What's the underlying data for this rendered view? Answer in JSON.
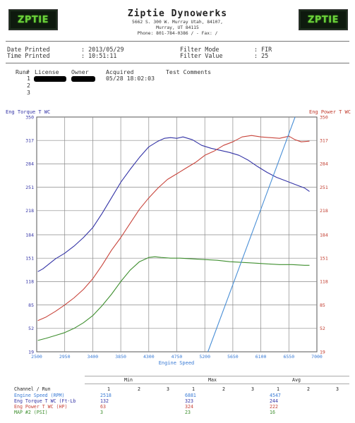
{
  "header": {
    "logo_left": "ZPTIE",
    "logo_right": "ZPTIE",
    "company": "Ziptie Dynowerks",
    "address1": "5662 S. 300 W. Murray Utah, 84107,",
    "address2": "Murray, UT  84115",
    "phone": "Phone: 801-784-0386 /  - Fax:  /"
  },
  "meta": {
    "date_label": "Date Printed",
    "date_value": ": 2013/05/29",
    "time_label": "Time Printed",
    "time_value": ": 10:51:11",
    "filter_mode_label": "Filter Mode",
    "filter_mode_value": ": FIR",
    "filter_value_label": "Filter Value",
    "filter_value_value": ": 25"
  },
  "runs": {
    "headers": [
      "Run#",
      "License",
      "Owner",
      "Acquired",
      "Test Comments"
    ],
    "rows": [
      {
        "num": "1",
        "acquired": "05/28 18:02:03"
      },
      {
        "num": "2",
        "acquired": ""
      },
      {
        "num": "3",
        "acquired": ""
      }
    ]
  },
  "chart_data": {
    "type": "line",
    "x_title": "Engine Speed",
    "left_axis_title": "Eng Torque T WC",
    "right_axis_title": "Eng Power T WC",
    "xlim": [
      2500,
      7000
    ],
    "ylim": [
      19,
      350
    ],
    "x_ticks": [
      "2500",
      "2950",
      "3400",
      "3850",
      "4300",
      "4750",
      "5200",
      "5650",
      "6100",
      "6550",
      "7000"
    ],
    "y_ticks": [
      "19",
      "52",
      "85",
      "118",
      "151",
      "184",
      "218",
      "251",
      "284",
      "317",
      "350"
    ],
    "grid": true,
    "colors": {
      "torque": "#3333a6",
      "power": "#c8443b",
      "map": "#3f8f2f",
      "speed": "#4a8fd6",
      "grid": "#8a8a8a",
      "right_axis": "#c0392b"
    },
    "series": [
      {
        "name": "Eng Torque T WC",
        "color": "#3333a6",
        "x": [
          2518,
          2600,
          2700,
          2800,
          2950,
          3100,
          3250,
          3400,
          3550,
          3700,
          3850,
          4000,
          4150,
          4300,
          4450,
          4550,
          4650,
          4750,
          4850,
          5000,
          5150,
          5300,
          5450,
          5600,
          5750,
          5900,
          6050,
          6200,
          6350,
          6500,
          6650,
          6800,
          6881
        ],
        "y": [
          132,
          136,
          143,
          150,
          158,
          168,
          180,
          194,
          214,
          236,
          258,
          276,
          293,
          308,
          316,
          320,
          321,
          320,
          322,
          318,
          310,
          306,
          303,
          300,
          296,
          289,
          280,
          272,
          265,
          260,
          255,
          250,
          245
        ]
      },
      {
        "name": "Eng Power T WC",
        "color": "#c8443b",
        "x": [
          2518,
          2650,
          2800,
          2950,
          3100,
          3250,
          3400,
          3550,
          3700,
          3850,
          4000,
          4150,
          4300,
          4450,
          4600,
          4750,
          4900,
          5050,
          5200,
          5350,
          5500,
          5650,
          5800,
          5950,
          6100,
          6250,
          6400,
          6550,
          6650,
          6750,
          6881
        ],
        "y": [
          63,
          68,
          76,
          85,
          95,
          107,
          122,
          141,
          162,
          180,
          200,
          220,
          236,
          250,
          262,
          270,
          278,
          286,
          296,
          302,
          310,
          315,
          322,
          324,
          322,
          321,
          320,
          323,
          318,
          315,
          316
        ]
      },
      {
        "name": "MAP #2 (PSI)",
        "color": "#3f8f2f",
        "x": [
          2518,
          2650,
          2800,
          2950,
          3100,
          3250,
          3400,
          3550,
          3700,
          3850,
          4000,
          4150,
          4300,
          4400,
          4500,
          4650,
          4800,
          5000,
          5200,
          5400,
          5600,
          5800,
          6000,
          6200,
          6400,
          6600,
          6800,
          6881
        ],
        "y": [
          35,
          38,
          42,
          46,
          52,
          60,
          70,
          84,
          100,
          118,
          134,
          146,
          152,
          153,
          152,
          151,
          151,
          150,
          149,
          148,
          146,
          145,
          144,
          143,
          142,
          142,
          141,
          141
        ]
      },
      {
        "name": "Engine Speed (RPM)",
        "color": "#4a8fd6",
        "x": [
          5250,
          6650
        ],
        "y": [
          19,
          350
        ]
      }
    ]
  },
  "summary": {
    "group_headers": [
      "Min",
      "Max",
      "Avg"
    ],
    "run_numbers": [
      "1",
      "2",
      "3"
    ],
    "label_col_header": "Channel / Run",
    "rows": [
      {
        "label": "Engine Speed (RPM)",
        "min": "2518",
        "max": "6881",
        "avg": "4547",
        "color": "#3a7bd5"
      },
      {
        "label": "Eng Torque T WC (Ft-Lb",
        "min": "132",
        "max": "323",
        "avg": "244",
        "color": "#3333a6"
      },
      {
        "label": "Eng Power T WC (HP)",
        "min": "63",
        "max": "324",
        "avg": "222",
        "color": "#c8443b"
      },
      {
        "label": "MAP #2 (PSI)",
        "min": "3",
        "max": "23",
        "avg": "16",
        "color": "#3f8f2f"
      }
    ]
  }
}
